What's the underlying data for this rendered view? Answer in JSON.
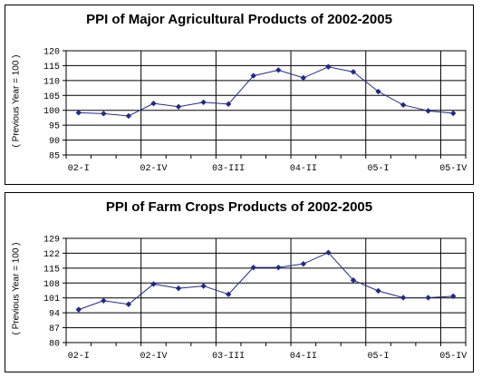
{
  "chart_data": [
    {
      "type": "line",
      "title": "PPI of Major Agricultural Products of 2002-2005",
      "ylabel": "( Previous Year = 100 )",
      "ylim": [
        85,
        120
      ],
      "yticks": [
        85,
        90,
        95,
        100,
        105,
        110,
        115,
        120
      ],
      "xtick_labels": [
        "02-I",
        "02-IV",
        "03-III",
        "04-II",
        "05-I",
        "05-IV"
      ],
      "x": [
        "02-I",
        "02-II",
        "02-III",
        "02-IV",
        "03-I",
        "03-II",
        "03-III",
        "03-IV",
        "04-I",
        "04-II",
        "04-III",
        "04-IV",
        "05-I",
        "05-II",
        "05-III",
        "05-IV"
      ],
      "series": [
        {
          "values": [
            99.2,
            98.9,
            98.1,
            102.3,
            101.2,
            102.7,
            102.1,
            111.6,
            113.5,
            110.9,
            114.6,
            112.9,
            106.3,
            101.8,
            99.8,
            99.0
          ]
        }
      ],
      "grid": true,
      "color": "#1f2a8c"
    },
    {
      "type": "line",
      "title": "PPI of Farm Crops Products of 2002-2005",
      "ylabel": "( Previous Year = 100 )",
      "ylim": [
        80,
        129
      ],
      "yticks": [
        80,
        87,
        94,
        101,
        108,
        115,
        122,
        129
      ],
      "xtick_labels": [
        "02-I",
        "02-IV",
        "03-III",
        "04-II",
        "05-I",
        "05-IV"
      ],
      "x": [
        "02-I",
        "02-II",
        "02-III",
        "02-IV",
        "03-I",
        "03-II",
        "03-III",
        "03-IV",
        "04-I",
        "04-II",
        "04-III",
        "04-IV",
        "05-I",
        "05-II",
        "05-III",
        "05-IV"
      ],
      "series": [
        {
          "values": [
            95.5,
            99.7,
            98.0,
            107.5,
            105.5,
            106.6,
            102.7,
            115.3,
            115.3,
            117.0,
            122.3,
            109.3,
            104.3,
            101.1,
            101.1,
            101.8
          ]
        }
      ],
      "grid": true,
      "color": "#1f2a8c"
    }
  ]
}
